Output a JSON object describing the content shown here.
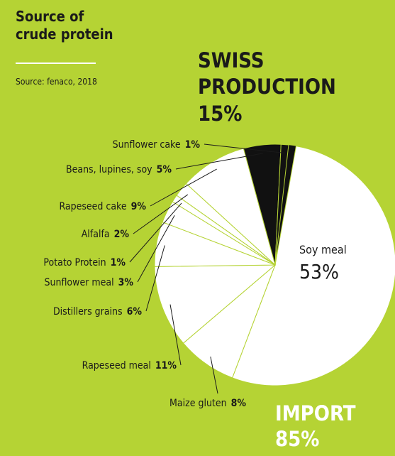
{
  "chart_data": {
    "type": "pie",
    "title": [
      "Source of",
      "crude protein"
    ],
    "source": "Source: fenaco, 2018",
    "groups": [
      {
        "name": [
          "SWISS",
          "PRODUCTION"
        ],
        "value": 15,
        "value_label": "15%"
      },
      {
        "name": [
          "IMPORT"
        ],
        "value": 85,
        "value_label": "85%"
      }
    ],
    "categories": [
      "Soy meal",
      "Maize gluten",
      "Rapeseed meal",
      "Distillers grains",
      "Sunflower meal",
      "Potato Protein",
      "Alfalfa",
      "Rapeseed cake",
      "Beans, lupines, soy",
      "Sunflower cake"
    ],
    "values": [
      53,
      8,
      11,
      6,
      3,
      1,
      2,
      9,
      5,
      1
    ],
    "value_labels": [
      "53%",
      "8%",
      "11%",
      "6%",
      "3%",
      "1%",
      "2%",
      "9%",
      "5%",
      "1%"
    ],
    "colors": [
      "#ffffff",
      "#ffffff",
      "#ffffff",
      "#ffffff",
      "#ffffff",
      "#ffffff",
      "#ffffff",
      "#ffffff",
      "#111111",
      "#111111"
    ]
  }
}
